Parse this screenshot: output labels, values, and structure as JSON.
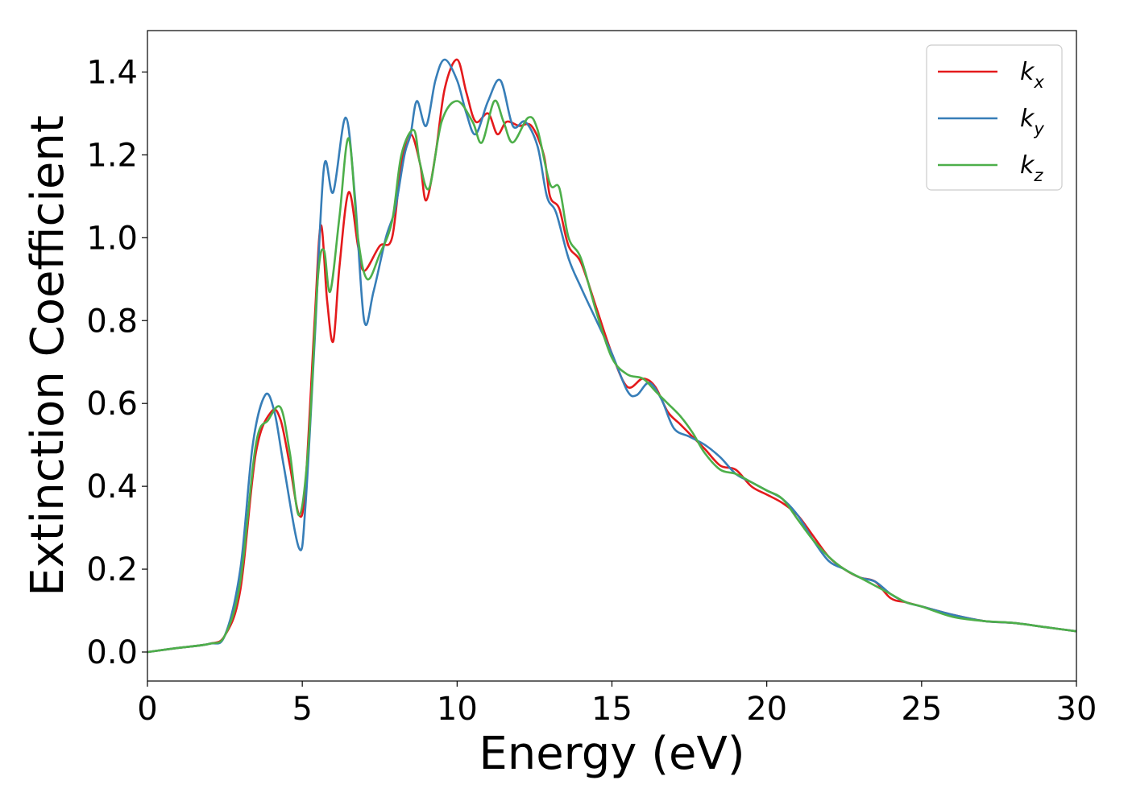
{
  "chart_data": {
    "type": "line",
    "title": "",
    "xlabel": "Energy (eV)",
    "ylabel": "Extinction Coefficient",
    "xlim": [
      0,
      30
    ],
    "ylim": [
      -0.07,
      1.5
    ],
    "xticks": [
      0,
      5,
      10,
      15,
      20,
      25,
      30
    ],
    "xtick_labels": [
      "0",
      "5",
      "10",
      "15",
      "20",
      "25",
      "30"
    ],
    "yticks": [
      0.0,
      0.2,
      0.4,
      0.6,
      0.8,
      1.0,
      1.2,
      1.4
    ],
    "ytick_labels": [
      "0.0",
      "0.2",
      "0.4",
      "0.6",
      "0.8",
      "1.0",
      "1.2",
      "1.4"
    ],
    "grid": false,
    "legend_position": "top-right",
    "series": [
      {
        "name": "k",
        "subscript": "x",
        "color": "#e41a1c",
        "points": [
          [
            0,
            0
          ],
          [
            1,
            0.01
          ],
          [
            2,
            0.02
          ],
          [
            2.5,
            0.04
          ],
          [
            3,
            0.15
          ],
          [
            3.5,
            0.48
          ],
          [
            4,
            0.58
          ],
          [
            4.3,
            0.56
          ],
          [
            4.6,
            0.45
          ],
          [
            4.9,
            0.33
          ],
          [
            5.1,
            0.4
          ],
          [
            5.4,
            0.8
          ],
          [
            5.6,
            1.03
          ],
          [
            5.8,
            0.85
          ],
          [
            6,
            0.75
          ],
          [
            6.2,
            0.93
          ],
          [
            6.5,
            1.11
          ],
          [
            6.8,
            0.98
          ],
          [
            7,
            0.92
          ],
          [
            7.5,
            0.98
          ],
          [
            7.9,
            1.0
          ],
          [
            8.2,
            1.18
          ],
          [
            8.5,
            1.25
          ],
          [
            8.8,
            1.18
          ],
          [
            9,
            1.09
          ],
          [
            9.3,
            1.2
          ],
          [
            9.6,
            1.36
          ],
          [
            10,
            1.43
          ],
          [
            10.3,
            1.35
          ],
          [
            10.6,
            1.28
          ],
          [
            11,
            1.3
          ],
          [
            11.3,
            1.25
          ],
          [
            11.6,
            1.28
          ],
          [
            12,
            1.27
          ],
          [
            12.4,
            1.27
          ],
          [
            12.8,
            1.2
          ],
          [
            13,
            1.1
          ],
          [
            13.3,
            1.07
          ],
          [
            13.6,
            0.98
          ],
          [
            14,
            0.94
          ],
          [
            14.5,
            0.83
          ],
          [
            15,
            0.72
          ],
          [
            15.5,
            0.64
          ],
          [
            16,
            0.66
          ],
          [
            16.4,
            0.64
          ],
          [
            16.8,
            0.58
          ],
          [
            17.2,
            0.55
          ],
          [
            17.6,
            0.52
          ],
          [
            18,
            0.49
          ],
          [
            18.5,
            0.45
          ],
          [
            19,
            0.44
          ],
          [
            19.5,
            0.4
          ],
          [
            20,
            0.38
          ],
          [
            20.5,
            0.36
          ],
          [
            21,
            0.33
          ],
          [
            21.5,
            0.28
          ],
          [
            22,
            0.23
          ],
          [
            22.5,
            0.2
          ],
          [
            23,
            0.18
          ],
          [
            23.5,
            0.17
          ],
          [
            24,
            0.13
          ],
          [
            24.5,
            0.12
          ],
          [
            25,
            0.11
          ],
          [
            26,
            0.09
          ],
          [
            27,
            0.075
          ],
          [
            28,
            0.07
          ],
          [
            29,
            0.06
          ],
          [
            30,
            0.05
          ]
        ]
      },
      {
        "name": "k",
        "subscript": "y",
        "color": "#377eb8",
        "points": [
          [
            0,
            0
          ],
          [
            1,
            0.01
          ],
          [
            2,
            0.02
          ],
          [
            2.5,
            0.04
          ],
          [
            3,
            0.2
          ],
          [
            3.4,
            0.5
          ],
          [
            3.8,
            0.62
          ],
          [
            4.1,
            0.58
          ],
          [
            4.4,
            0.45
          ],
          [
            4.9,
            0.25
          ],
          [
            5.1,
            0.35
          ],
          [
            5.4,
            0.75
          ],
          [
            5.7,
            1.17
          ],
          [
            6,
            1.11
          ],
          [
            6.4,
            1.29
          ],
          [
            6.7,
            1.1
          ],
          [
            7,
            0.8
          ],
          [
            7.3,
            0.87
          ],
          [
            7.7,
            1.0
          ],
          [
            8,
            1.07
          ],
          [
            8.3,
            1.2
          ],
          [
            8.5,
            1.25
          ],
          [
            8.7,
            1.33
          ],
          [
            9,
            1.27
          ],
          [
            9.3,
            1.38
          ],
          [
            9.6,
            1.43
          ],
          [
            10,
            1.38
          ],
          [
            10.3,
            1.3
          ],
          [
            10.6,
            1.25
          ],
          [
            11,
            1.33
          ],
          [
            11.4,
            1.38
          ],
          [
            11.8,
            1.27
          ],
          [
            12.2,
            1.28
          ],
          [
            12.6,
            1.22
          ],
          [
            12.9,
            1.1
          ],
          [
            13.2,
            1.06
          ],
          [
            13.6,
            0.95
          ],
          [
            14,
            0.88
          ],
          [
            14.5,
            0.8
          ],
          [
            15,
            0.72
          ],
          [
            15.5,
            0.63
          ],
          [
            15.8,
            0.62
          ],
          [
            16.2,
            0.65
          ],
          [
            16.6,
            0.61
          ],
          [
            17,
            0.54
          ],
          [
            17.5,
            0.52
          ],
          [
            18,
            0.5
          ],
          [
            18.5,
            0.47
          ],
          [
            19,
            0.43
          ],
          [
            19.5,
            0.41
          ],
          [
            20,
            0.39
          ],
          [
            20.5,
            0.37
          ],
          [
            21,
            0.33
          ],
          [
            21.5,
            0.27
          ],
          [
            22,
            0.22
          ],
          [
            22.5,
            0.2
          ],
          [
            23,
            0.18
          ],
          [
            23.5,
            0.17
          ],
          [
            24,
            0.14
          ],
          [
            24.5,
            0.12
          ],
          [
            25,
            0.11
          ],
          [
            26,
            0.09
          ],
          [
            27,
            0.075
          ],
          [
            28,
            0.07
          ],
          [
            29,
            0.06
          ],
          [
            30,
            0.05
          ]
        ]
      },
      {
        "name": "k",
        "subscript": "z",
        "color": "#4daf4a",
        "points": [
          [
            0,
            0
          ],
          [
            1,
            0.01
          ],
          [
            2,
            0.02
          ],
          [
            2.5,
            0.04
          ],
          [
            3,
            0.17
          ],
          [
            3.5,
            0.5
          ],
          [
            3.9,
            0.56
          ],
          [
            4.3,
            0.59
          ],
          [
            4.6,
            0.48
          ],
          [
            4.9,
            0.33
          ],
          [
            5.2,
            0.5
          ],
          [
            5.5,
            0.9
          ],
          [
            5.7,
            0.97
          ],
          [
            5.9,
            0.87
          ],
          [
            6.2,
            1.05
          ],
          [
            6.5,
            1.24
          ],
          [
            6.8,
            1.0
          ],
          [
            7.1,
            0.9
          ],
          [
            7.5,
            0.96
          ],
          [
            7.9,
            1.04
          ],
          [
            8.2,
            1.2
          ],
          [
            8.6,
            1.26
          ],
          [
            8.8,
            1.18
          ],
          [
            9.1,
            1.12
          ],
          [
            9.5,
            1.28
          ],
          [
            10,
            1.33
          ],
          [
            10.5,
            1.28
          ],
          [
            10.8,
            1.23
          ],
          [
            11.2,
            1.33
          ],
          [
            11.5,
            1.28
          ],
          [
            11.8,
            1.23
          ],
          [
            12.3,
            1.29
          ],
          [
            12.6,
            1.26
          ],
          [
            13,
            1.13
          ],
          [
            13.3,
            1.12
          ],
          [
            13.6,
            1.0
          ],
          [
            14,
            0.95
          ],
          [
            14.5,
            0.82
          ],
          [
            15,
            0.71
          ],
          [
            15.5,
            0.67
          ],
          [
            16,
            0.66
          ],
          [
            16.4,
            0.63
          ],
          [
            16.8,
            0.6
          ],
          [
            17.2,
            0.57
          ],
          [
            17.6,
            0.53
          ],
          [
            18,
            0.48
          ],
          [
            18.5,
            0.44
          ],
          [
            19,
            0.43
          ],
          [
            19.5,
            0.41
          ],
          [
            20,
            0.39
          ],
          [
            20.5,
            0.37
          ],
          [
            21,
            0.32
          ],
          [
            21.5,
            0.27
          ],
          [
            22,
            0.23
          ],
          [
            22.5,
            0.2
          ],
          [
            23,
            0.18
          ],
          [
            23.5,
            0.16
          ],
          [
            24,
            0.14
          ],
          [
            24.5,
            0.12
          ],
          [
            25,
            0.11
          ],
          [
            26,
            0.085
          ],
          [
            27,
            0.075
          ],
          [
            28,
            0.07
          ],
          [
            29,
            0.06
          ],
          [
            30,
            0.05
          ]
        ]
      }
    ]
  }
}
